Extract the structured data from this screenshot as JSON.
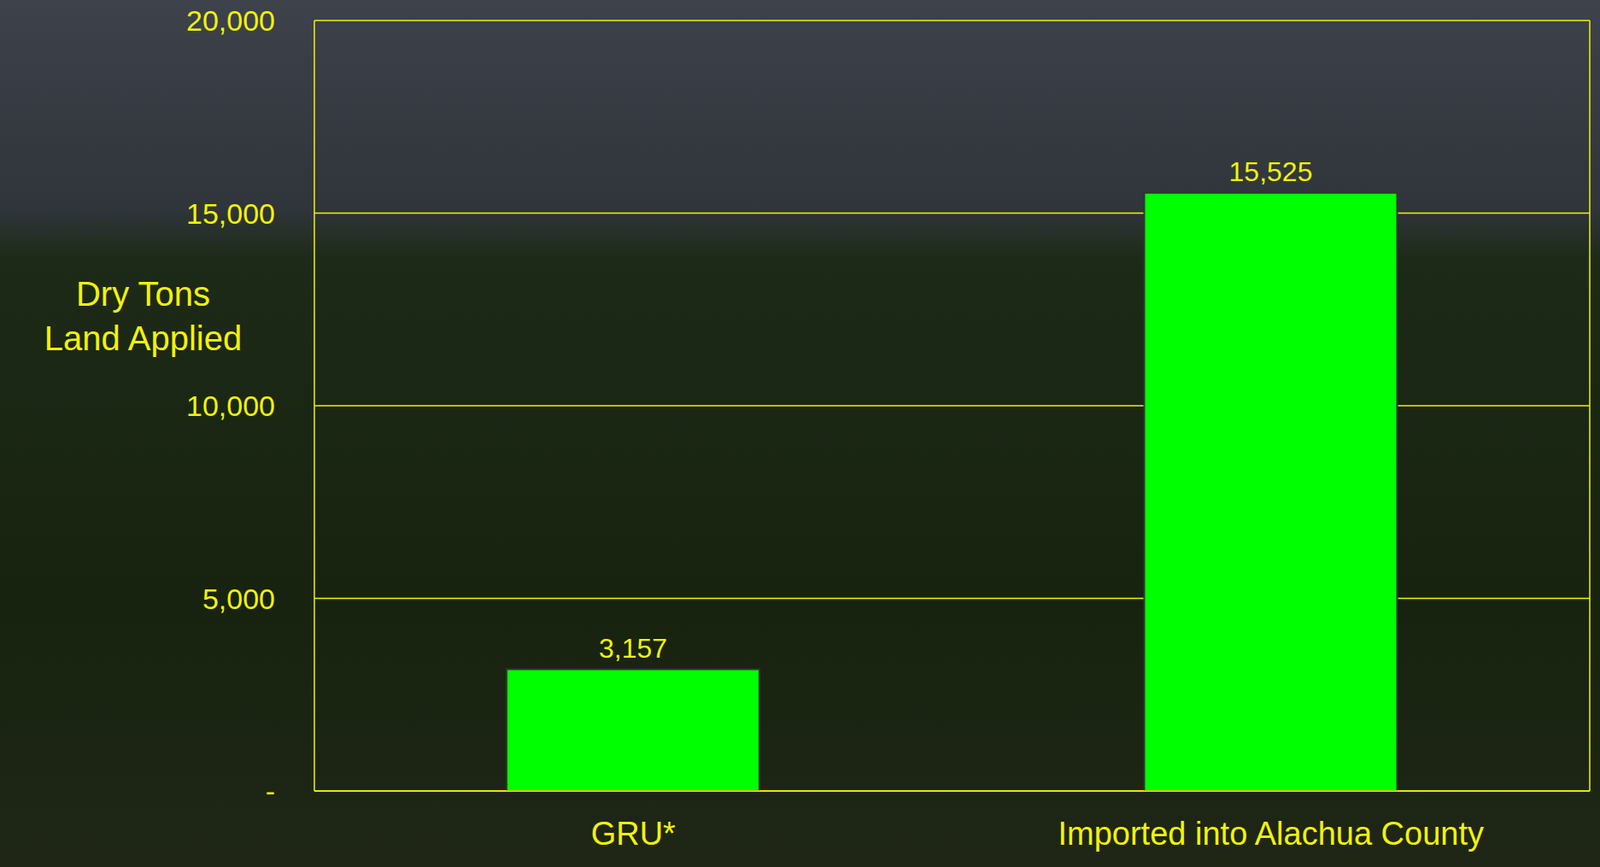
{
  "chart_data": {
    "type": "bar",
    "y_label": "Dry Tons Land Applied",
    "categories": [
      "GRU*",
      "Imported into Alachua County"
    ],
    "values": [
      3157,
      15525
    ],
    "value_labels": [
      "3,157",
      "15,525"
    ],
    "color": "#00ff00",
    "ylim": [
      0,
      20000
    ],
    "yticks": [
      {
        "value": 0,
        "label": "-"
      },
      {
        "value": 5000,
        "label": "5,000"
      },
      {
        "value": 10000,
        "label": "10,000"
      },
      {
        "value": 15000,
        "label": "15,000"
      },
      {
        "value": 20000,
        "label": "20,000"
      }
    ],
    "grid": true,
    "data_labels": true
  }
}
